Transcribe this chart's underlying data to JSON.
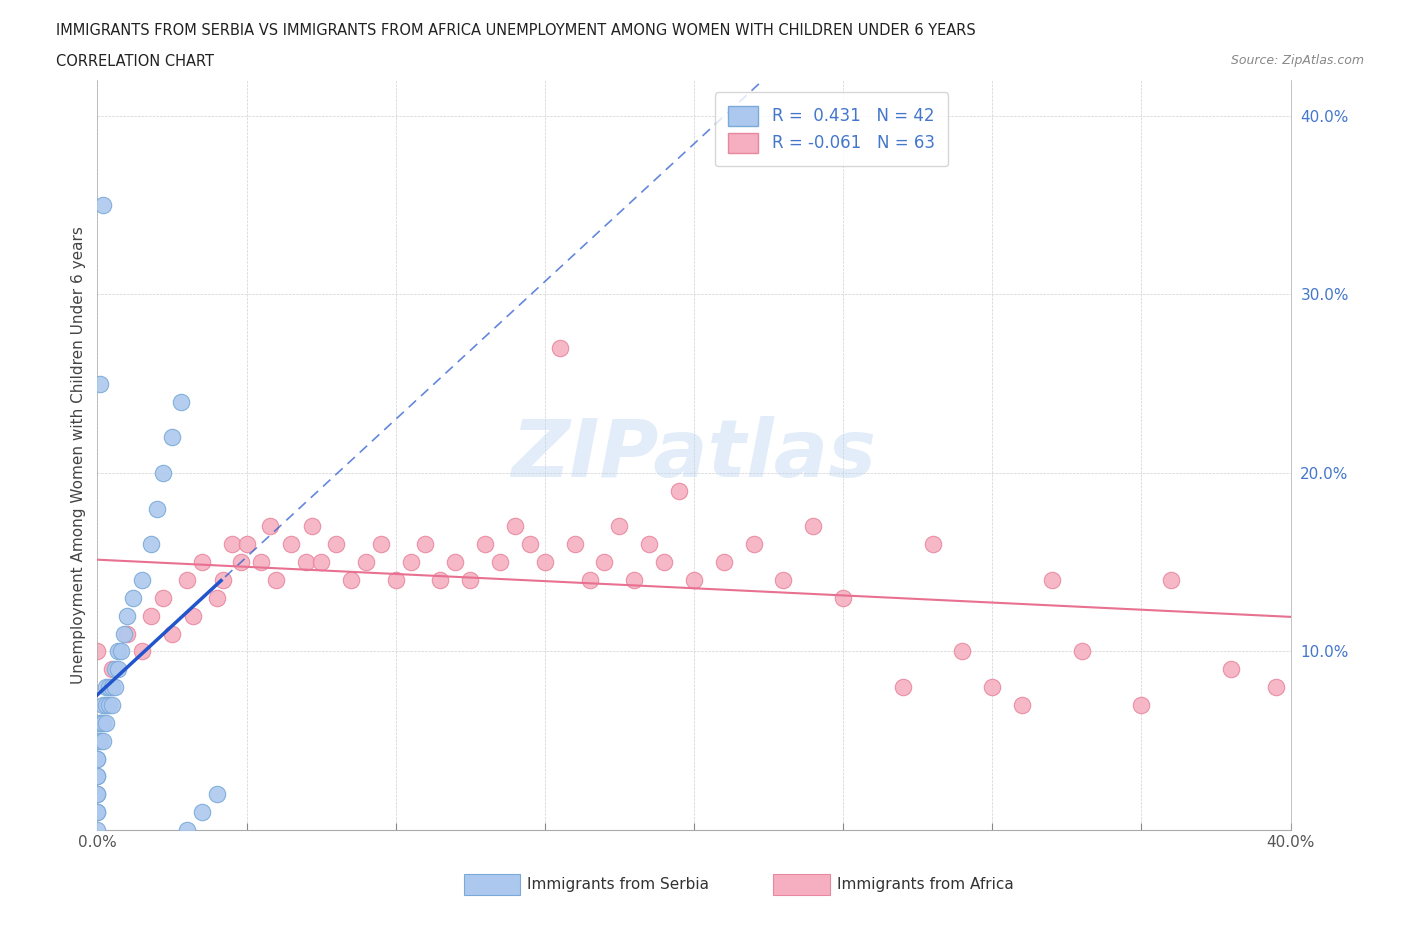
{
  "title_line1": "IMMIGRANTS FROM SERBIA VS IMMIGRANTS FROM AFRICA UNEMPLOYMENT AMONG WOMEN WITH CHILDREN UNDER 6 YEARS",
  "title_line2": "CORRELATION CHART",
  "source": "Source: ZipAtlas.com",
  "ylabel": "Unemployment Among Women with Children Under 6 years",
  "xlim": [
    0.0,
    0.4
  ],
  "ylim": [
    0.0,
    0.42
  ],
  "serbia_color": "#adc8ee",
  "africa_color": "#f5afc0",
  "serbia_edge_color": "#7aaad8",
  "africa_edge_color": "#e888a0",
  "serbia_trend_color": "#2255cc",
  "africa_trend_color": "#e87090",
  "ytick_color": "#4477cc",
  "serbia_R": 0.431,
  "serbia_N": 42,
  "africa_R": -0.061,
  "africa_N": 63,
  "legend_label_serbia": "Immigrants from Serbia",
  "legend_label_africa": "Immigrants from Africa",
  "watermark": "ZIPatlas",
  "serbia_x": [
    0.0,
    0.0,
    0.0,
    0.0,
    0.0,
    0.0,
    0.0,
    0.0,
    0.0,
    0.0,
    0.001,
    0.001,
    0.001,
    0.002,
    0.002,
    0.002,
    0.003,
    0.003,
    0.003,
    0.004,
    0.004,
    0.005,
    0.005,
    0.006,
    0.006,
    0.007,
    0.007,
    0.008,
    0.009,
    0.01,
    0.012,
    0.015,
    0.018,
    0.02,
    0.022,
    0.025,
    0.028,
    0.03,
    0.035,
    0.04,
    0.002,
    0.001
  ],
  "serbia_y": [
    0.0,
    0.01,
    0.01,
    0.02,
    0.02,
    0.03,
    0.03,
    0.04,
    0.04,
    0.05,
    0.05,
    0.06,
    0.06,
    0.05,
    0.06,
    0.07,
    0.06,
    0.07,
    0.08,
    0.07,
    0.08,
    0.07,
    0.08,
    0.08,
    0.09,
    0.09,
    0.1,
    0.1,
    0.11,
    0.12,
    0.13,
    0.14,
    0.16,
    0.18,
    0.2,
    0.22,
    0.24,
    0.0,
    0.01,
    0.02,
    0.35,
    0.25
  ],
  "africa_x": [
    0.0,
    0.005,
    0.01,
    0.015,
    0.018,
    0.022,
    0.025,
    0.03,
    0.032,
    0.035,
    0.04,
    0.042,
    0.045,
    0.048,
    0.05,
    0.055,
    0.058,
    0.06,
    0.065,
    0.07,
    0.072,
    0.075,
    0.08,
    0.085,
    0.09,
    0.095,
    0.1,
    0.105,
    0.11,
    0.115,
    0.12,
    0.125,
    0.13,
    0.135,
    0.14,
    0.145,
    0.15,
    0.16,
    0.165,
    0.17,
    0.175,
    0.18,
    0.185,
    0.19,
    0.2,
    0.21,
    0.22,
    0.23,
    0.24,
    0.25,
    0.27,
    0.28,
    0.29,
    0.3,
    0.31,
    0.32,
    0.33,
    0.35,
    0.36,
    0.38,
    0.395,
    0.155,
    0.195
  ],
  "africa_y": [
    0.1,
    0.09,
    0.11,
    0.1,
    0.12,
    0.13,
    0.11,
    0.14,
    0.12,
    0.15,
    0.13,
    0.14,
    0.16,
    0.15,
    0.16,
    0.15,
    0.17,
    0.14,
    0.16,
    0.15,
    0.17,
    0.15,
    0.16,
    0.14,
    0.15,
    0.16,
    0.14,
    0.15,
    0.16,
    0.14,
    0.15,
    0.14,
    0.16,
    0.15,
    0.17,
    0.16,
    0.15,
    0.16,
    0.14,
    0.15,
    0.17,
    0.14,
    0.16,
    0.15,
    0.14,
    0.15,
    0.16,
    0.14,
    0.17,
    0.13,
    0.08,
    0.16,
    0.1,
    0.08,
    0.07,
    0.14,
    0.1,
    0.07,
    0.14,
    0.09,
    0.08,
    0.27,
    0.19
  ]
}
